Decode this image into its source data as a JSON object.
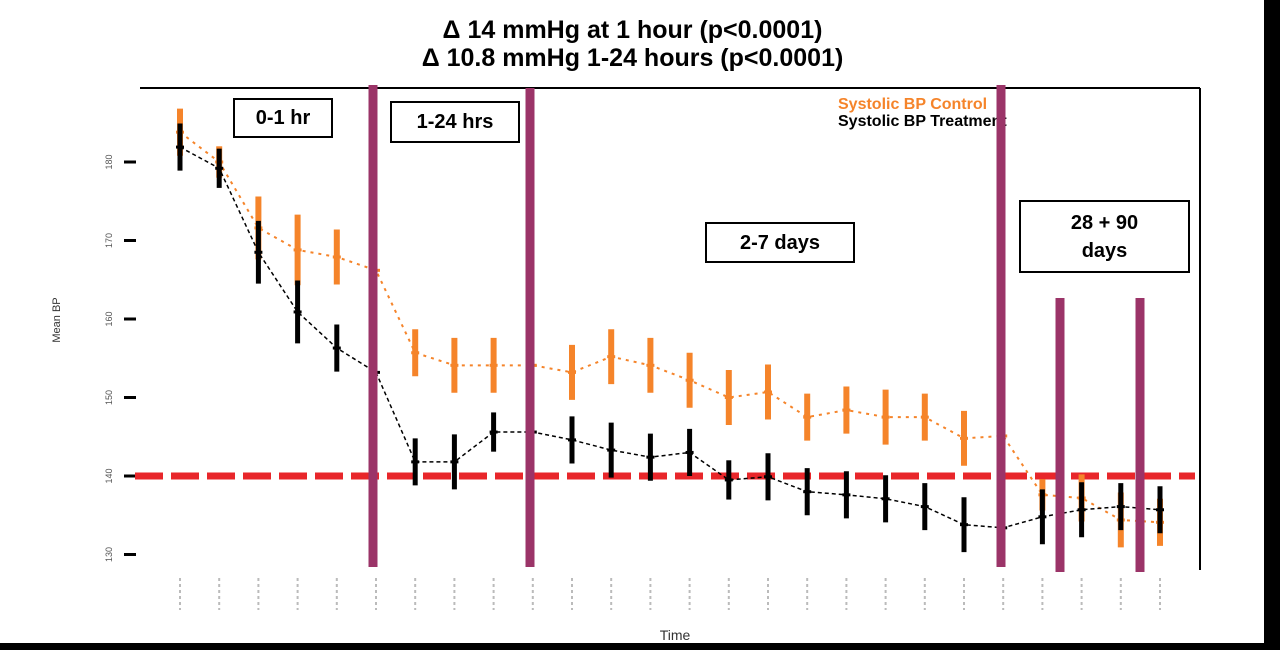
{
  "header": {
    "line1": "Δ 14 mmHg at 1 hour (p<0.0001)",
    "line2": "Δ 10.8 mmHg 1-24 hours (p<0.0001)"
  },
  "phase_labels": [
    "0-1 hr",
    "1-24 hrs",
    "2-7 days",
    "28 + 90\ndays"
  ],
  "chart_data": {
    "type": "line",
    "xlabel": "Time",
    "ylabel": "Mean BP",
    "ylim": [
      127,
      192
    ],
    "yticks": [
      130,
      140,
      150,
      160,
      170,
      180
    ],
    "x_count": 26,
    "reference_line": {
      "value": 140,
      "color": "#e8262a",
      "style": "dashed"
    },
    "legend_position": "top-right",
    "series": [
      {
        "name": "Systolic BP Control",
        "color": "#f5842a",
        "values": [
          183.8,
          180,
          171.6,
          168.8,
          167.9,
          166.2,
          155.7,
          154.1,
          154.1,
          154.1,
          153.2,
          155.2,
          154.1,
          152.2,
          150,
          150.7,
          147.5,
          148.4,
          147.5,
          147.5,
          144.8,
          145.1,
          137.6,
          137.2,
          134.4,
          134.1
        ],
        "errors": [
          3,
          2,
          4,
          4.5,
          3.5,
          0,
          3,
          3.5,
          3.5,
          0,
          3.5,
          3.5,
          3.5,
          3.5,
          3.5,
          3.5,
          3,
          3,
          3.5,
          3,
          3.5,
          0,
          2,
          3,
          3.5,
          3
        ]
      },
      {
        "name": "Systolic BP Treatment",
        "color": "#000000",
        "values": [
          181.9,
          179.2,
          168.5,
          160.9,
          156.3,
          153.2,
          141.8,
          141.8,
          145.6,
          145.6,
          144.6,
          143.3,
          142.4,
          143,
          139.5,
          139.9,
          138,
          137.6,
          137.1,
          136.1,
          133.8,
          133.4,
          134.8,
          135.7,
          136.1,
          135.7
        ],
        "errors": [
          3,
          2.5,
          4,
          4,
          3,
          0,
          3,
          3.5,
          2.5,
          0,
          3,
          3.5,
          3,
          3,
          2.5,
          3,
          3,
          3,
          3,
          3,
          3.5,
          0,
          3.5,
          3.5,
          3,
          3
        ]
      }
    ],
    "phase_dividers_color": "#9b3468"
  }
}
